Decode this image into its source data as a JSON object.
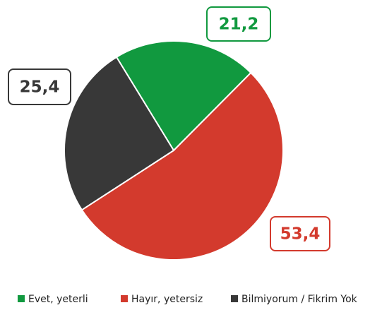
{
  "chart_data": {
    "type": "pie",
    "categories": [
      "Evet, yeterli",
      "Hayır, yetersiz",
      "Bilmiyorum / Fikrim Yok"
    ],
    "values": [
      21.2,
      53.4,
      25.4
    ],
    "value_labels": [
      "21,2",
      "53,4",
      "25,4"
    ],
    "colors": [
      "#11993f",
      "#d33a2d",
      "#383838"
    ]
  }
}
